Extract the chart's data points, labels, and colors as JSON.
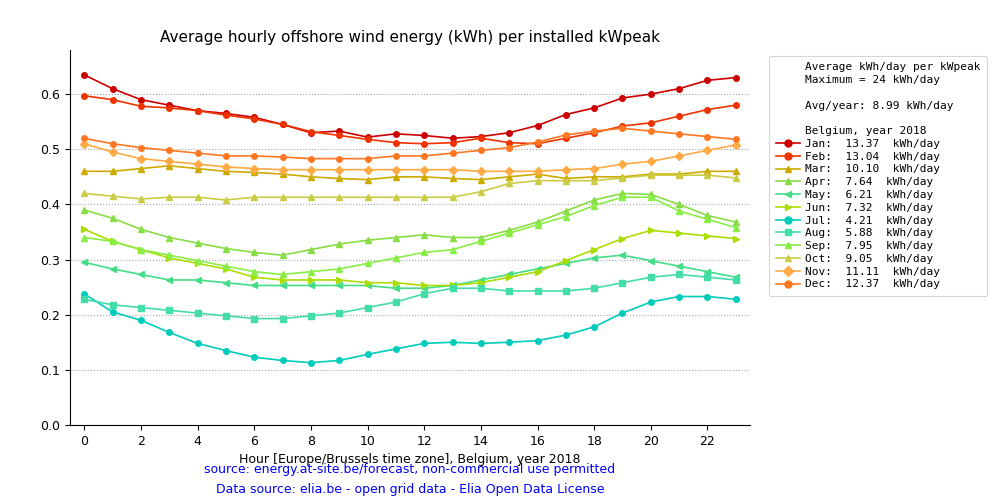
{
  "title": "Average hourly offshore wind energy (kWh) per installed kWpeak",
  "xlabel": "Hour [Europe/Brussels time zone], Belgium, year 2018",
  "source_line1": "source: energy.at-site.be/forecast, non-commercial use permitted",
  "source_line2": "Data source: elia.be - open grid data - Elia Open Data License",
  "legend_title_line1": "Average kWh/day per kWpeak",
  "legend_title_line2": "Maximum = 24 kWh/day",
  "legend_avg": "Avg/year: 8.99 kWh/day",
  "legend_country": "Belgium, year 2018",
  "ylim": [
    0.0,
    0.68
  ],
  "yticks": [
    0.0,
    0.1,
    0.2,
    0.3,
    0.4,
    0.5,
    0.6
  ],
  "hours": [
    0,
    1,
    2,
    3,
    4,
    5,
    6,
    7,
    8,
    9,
    10,
    11,
    12,
    13,
    14,
    15,
    16,
    17,
    18,
    19,
    20,
    21,
    22,
    23
  ],
  "months": {
    "Jan": {
      "color": "#cc0000",
      "marker": "o",
      "avg": "13.37",
      "values": [
        0.635,
        0.61,
        0.59,
        0.58,
        0.57,
        0.565,
        0.558,
        0.545,
        0.53,
        0.533,
        0.522,
        0.528,
        0.525,
        0.52,
        0.523,
        0.53,
        0.543,
        0.563,
        0.575,
        0.593,
        0.6,
        0.61,
        0.625,
        0.63
      ]
    },
    "Feb": {
      "color": "#ee3300",
      "marker": "o",
      "avg": "13.04",
      "values": [
        0.597,
        0.59,
        0.578,
        0.575,
        0.57,
        0.562,
        0.555,
        0.545,
        0.532,
        0.525,
        0.518,
        0.512,
        0.51,
        0.512,
        0.52,
        0.512,
        0.51,
        0.52,
        0.53,
        0.542,
        0.548,
        0.56,
        0.572,
        0.58
      ]
    },
    "Mar": {
      "color": "#ccaa00",
      "marker": "^",
      "avg": "10.10",
      "values": [
        0.46,
        0.46,
        0.465,
        0.47,
        0.465,
        0.46,
        0.458,
        0.455,
        0.45,
        0.447,
        0.445,
        0.45,
        0.45,
        0.447,
        0.445,
        0.45,
        0.455,
        0.447,
        0.45,
        0.45,
        0.455,
        0.455,
        0.46,
        0.46
      ]
    },
    "Apr": {
      "color": "#88dd44",
      "marker": "^",
      "avg": "7.64",
      "values": [
        0.39,
        0.375,
        0.355,
        0.34,
        0.33,
        0.32,
        0.313,
        0.308,
        0.318,
        0.328,
        0.335,
        0.34,
        0.345,
        0.34,
        0.34,
        0.353,
        0.368,
        0.388,
        0.408,
        0.42,
        0.418,
        0.4,
        0.38,
        0.368
      ]
    },
    "May": {
      "color": "#44dd88",
      "marker": "<",
      "avg": "6.21",
      "values": [
        0.295,
        0.283,
        0.273,
        0.263,
        0.263,
        0.258,
        0.253,
        0.253,
        0.253,
        0.253,
        0.253,
        0.248,
        0.248,
        0.253,
        0.263,
        0.273,
        0.283,
        0.293,
        0.303,
        0.308,
        0.298,
        0.288,
        0.278,
        0.268
      ]
    },
    "Jun": {
      "color": "#aadd00",
      "marker": ">",
      "avg": "7.32",
      "values": [
        0.355,
        0.333,
        0.318,
        0.303,
        0.293,
        0.283,
        0.268,
        0.263,
        0.263,
        0.263,
        0.258,
        0.258,
        0.253,
        0.253,
        0.258,
        0.268,
        0.278,
        0.298,
        0.318,
        0.338,
        0.353,
        0.348,
        0.343,
        0.338
      ]
    },
    "Jul": {
      "color": "#00ccbb",
      "marker": "o",
      "avg": "4.21",
      "values": [
        0.238,
        0.205,
        0.19,
        0.168,
        0.148,
        0.135,
        0.123,
        0.117,
        0.113,
        0.117,
        0.128,
        0.138,
        0.148,
        0.15,
        0.148,
        0.15,
        0.153,
        0.163,
        0.178,
        0.203,
        0.223,
        0.233,
        0.233,
        0.228
      ]
    },
    "Aug": {
      "color": "#44ddaa",
      "marker": "s",
      "avg": "5.88",
      "values": [
        0.228,
        0.218,
        0.213,
        0.208,
        0.203,
        0.198,
        0.193,
        0.193,
        0.198,
        0.203,
        0.213,
        0.223,
        0.238,
        0.248,
        0.248,
        0.243,
        0.243,
        0.243,
        0.248,
        0.258,
        0.268,
        0.273,
        0.268,
        0.263
      ]
    },
    "Sep": {
      "color": "#88ee44",
      "marker": "^",
      "avg": "7.95",
      "values": [
        0.34,
        0.333,
        0.318,
        0.308,
        0.298,
        0.288,
        0.278,
        0.273,
        0.278,
        0.283,
        0.293,
        0.303,
        0.313,
        0.318,
        0.333,
        0.348,
        0.363,
        0.378,
        0.398,
        0.413,
        0.413,
        0.388,
        0.373,
        0.358
      ]
    },
    "Oct": {
      "color": "#cccc44",
      "marker": "^",
      "avg": "9.05",
      "values": [
        0.42,
        0.415,
        0.41,
        0.413,
        0.413,
        0.408,
        0.413,
        0.413,
        0.413,
        0.413,
        0.413,
        0.413,
        0.413,
        0.413,
        0.423,
        0.438,
        0.443,
        0.443,
        0.443,
        0.448,
        0.453,
        0.453,
        0.453,
        0.448
      ]
    },
    "Nov": {
      "color": "#ffaa44",
      "marker": "D",
      "avg": "11.11",
      "values": [
        0.51,
        0.495,
        0.483,
        0.478,
        0.473,
        0.468,
        0.465,
        0.463,
        0.463,
        0.463,
        0.463,
        0.463,
        0.463,
        0.463,
        0.46,
        0.46,
        0.46,
        0.463,
        0.465,
        0.473,
        0.478,
        0.488,
        0.498,
        0.508
      ]
    },
    "Dec": {
      "color": "#ff7722",
      "marker": "o",
      "avg": "12.37",
      "values": [
        0.52,
        0.51,
        0.503,
        0.498,
        0.493,
        0.488,
        0.488,
        0.486,
        0.483,
        0.483,
        0.483,
        0.488,
        0.488,
        0.493,
        0.498,
        0.503,
        0.513,
        0.526,
        0.533,
        0.538,
        0.533,
        0.528,
        0.523,
        0.518
      ]
    }
  }
}
